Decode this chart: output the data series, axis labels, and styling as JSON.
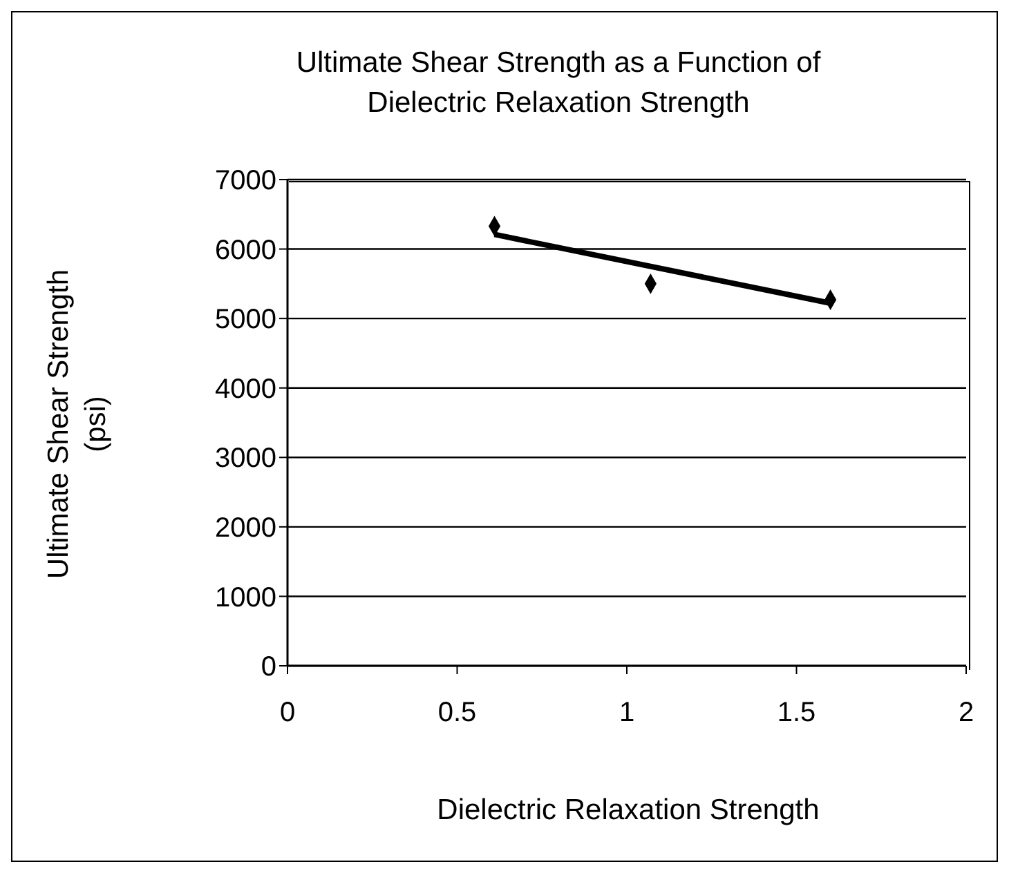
{
  "chart_data": {
    "type": "scatter",
    "title": "Ultimate Shear Strength as a Function of Dielectric Relaxation Strength",
    "xlabel": "Dielectric Relaxation Strength",
    "ylabel": "Ultimate Shear Strength (psi)",
    "xlim": [
      0,
      2
    ],
    "xticks": [
      0,
      0.5,
      1,
      1.5,
      2
    ],
    "ylim": [
      0,
      7000
    ],
    "yticks": [
      0,
      1000,
      2000,
      3000,
      4000,
      5000,
      6000,
      7000
    ],
    "grid": "y",
    "legend": false,
    "series": [
      {
        "color": "#000000",
        "marker": "diamond",
        "x": [
          0.61,
          1.07,
          1.6
        ],
        "values": [
          6330,
          5500,
          5270
        ]
      },
      {
        "type": "line",
        "color": "#000000",
        "marker": "none",
        "x": [
          0.61,
          1.6
        ],
        "values": [
          6210,
          5220
        ]
      }
    ]
  }
}
